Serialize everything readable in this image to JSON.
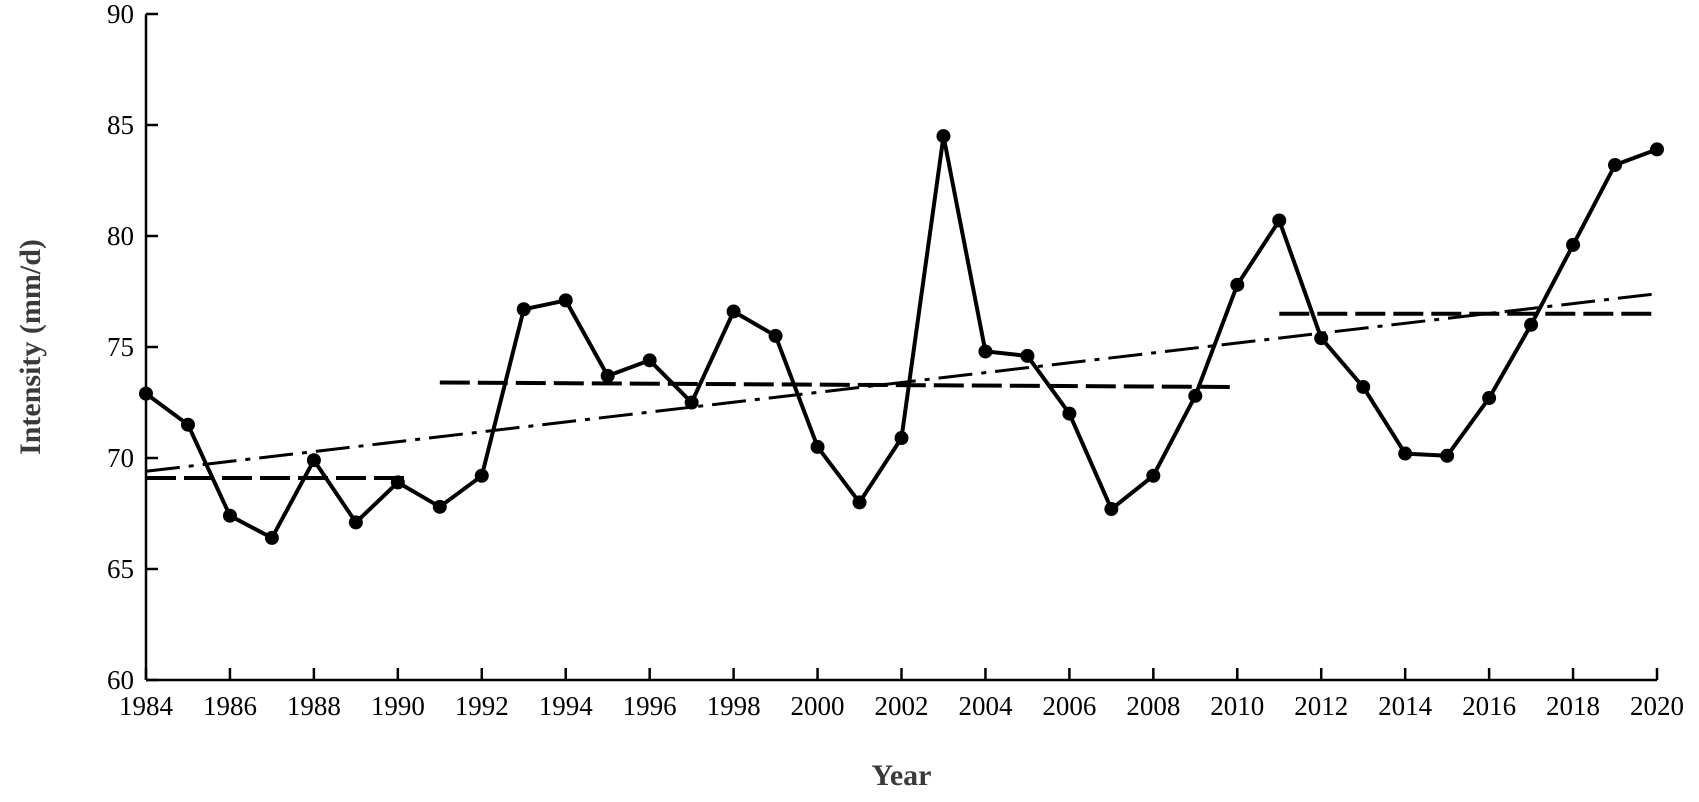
{
  "chart_data": {
    "type": "line",
    "title": "",
    "xlabel": "Year",
    "ylabel": "Intensity (mm/d)",
    "xlim": [
      1984,
      2020
    ],
    "ylim": [
      60,
      90
    ],
    "x_ticks": [
      "1984",
      "1986",
      "1988",
      "1990",
      "1992",
      "1994",
      "1996",
      "1998",
      "2000",
      "2002",
      "2004",
      "2006",
      "2008",
      "2010",
      "2012",
      "2014",
      "2016",
      "2018",
      "2020"
    ],
    "y_ticks": [
      "60",
      "65",
      "70",
      "75",
      "80",
      "85",
      "90"
    ],
    "grid": false,
    "legend": "none",
    "series": [
      {
        "style": "solid-with-markers",
        "x": [
          1984,
          1985,
          1986,
          1987,
          1988,
          1989,
          1990,
          1991,
          1992,
          1993,
          1994,
          1995,
          1996,
          1997,
          1998,
          1999,
          2000,
          2001,
          2002,
          2003,
          2004,
          2005,
          2006,
          2007,
          2008,
          2009,
          2010,
          2011,
          2012,
          2013,
          2014,
          2015,
          2016,
          2017,
          2018,
          2019,
          2020
        ],
        "values": [
          72.9,
          71.5,
          67.4,
          66.4,
          69.9,
          67.1,
          68.9,
          67.8,
          69.2,
          76.7,
          77.1,
          73.7,
          74.4,
          72.5,
          76.6,
          75.5,
          70.5,
          68.0,
          70.9,
          84.5,
          74.8,
          74.6,
          72.0,
          67.7,
          69.2,
          72.8,
          77.8,
          80.7,
          75.4,
          73.2,
          70.2,
          70.1,
          72.7,
          76.0,
          79.6,
          83.2,
          83.9
        ]
      },
      {
        "style": "dash-dot-trend",
        "x": [
          1984,
          2020
        ],
        "values": [
          69.4,
          77.4
        ]
      },
      {
        "style": "dashed-segment",
        "x": [
          1984,
          1990.2
        ],
        "values": [
          69.1,
          69.1
        ]
      },
      {
        "style": "dashed-segment",
        "x": [
          1991,
          2010
        ],
        "values": [
          73.4,
          73.2
        ]
      },
      {
        "style": "dashed-segment",
        "x": [
          2011,
          2020
        ],
        "values": [
          76.5,
          76.5
        ]
      }
    ],
    "colors": {
      "line": "#000000",
      "axis": "#000000",
      "axis_title": "#3a3a3a"
    }
  }
}
